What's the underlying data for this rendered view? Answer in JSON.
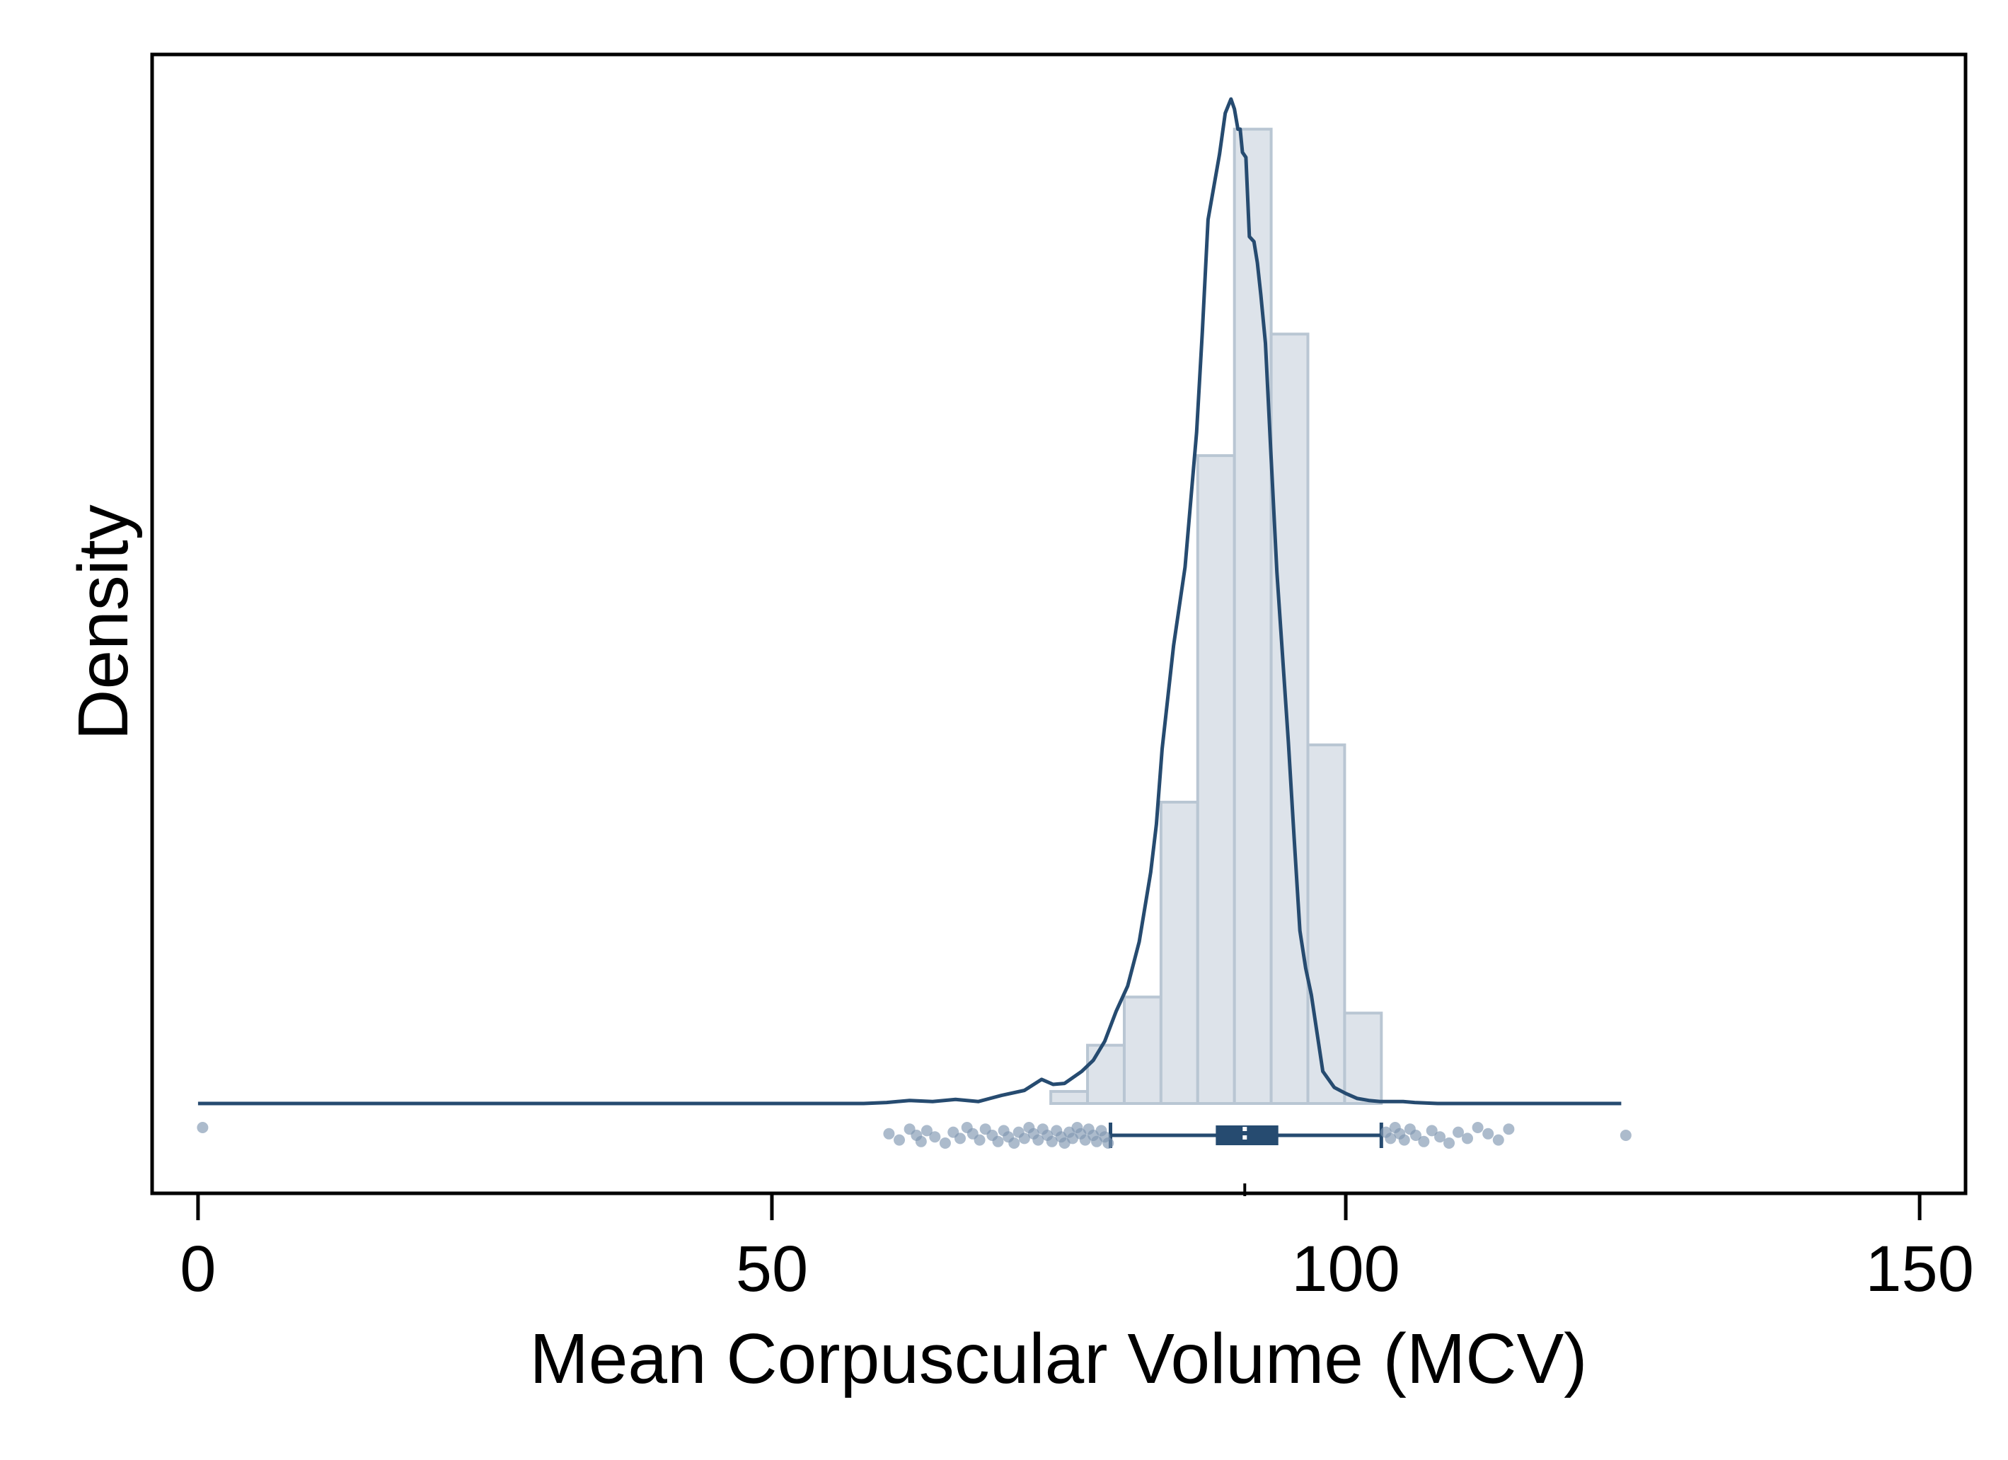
{
  "chart_data": {
    "type": "histogram",
    "xlabel": "Mean Corpuscular Volume (MCV)",
    "ylabel": "Density",
    "xlim": [
      -4,
      154
    ],
    "x_ticks": [
      0,
      50,
      100,
      150
    ],
    "x_tick_labels": [
      "0",
      "50",
      "100",
      "150"
    ],
    "y_ticks_shown": false,
    "grid": false,
    "histogram": {
      "bin_edges": [
        74.3,
        77.5,
        80.7,
        83.9,
        87.1,
        90.3,
        93.5,
        96.7,
        99.9,
        103.1
      ],
      "relative_heights": [
        0.012,
        0.058,
        0.106,
        0.3,
        0.645,
        0.97,
        0.766,
        0.357,
        0.09
      ]
    },
    "density_curve": {
      "x": [
        0,
        30,
        58,
        60,
        62,
        64,
        66,
        68,
        70,
        72,
        73.5,
        74.5,
        75.5,
        77,
        78,
        79,
        80,
        81,
        82,
        83,
        83.5,
        84,
        85,
        86,
        87,
        87.5,
        88,
        89,
        89.5,
        90,
        90.3,
        90.6,
        90.8,
        91,
        91.3,
        91.6,
        92,
        92.3,
        92.6,
        93,
        93.5,
        94,
        95,
        95.5,
        96,
        96.5,
        97,
        97.5,
        98,
        99,
        100,
        101,
        102,
        103,
        104,
        105,
        106,
        108,
        110,
        112,
        114,
        116,
        118,
        120,
        122,
        124
      ],
      "y": [
        0,
        0,
        0,
        0.001,
        0.003,
        0.002,
        0.004,
        0.002,
        0.008,
        0.013,
        0.024,
        0.019,
        0.02,
        0.032,
        0.043,
        0.062,
        0.092,
        0.117,
        0.161,
        0.23,
        0.278,
        0.353,
        0.456,
        0.534,
        0.668,
        0.768,
        0.88,
        0.945,
        0.986,
        1.0,
        0.99,
        0.97,
        0.97,
        0.947,
        0.942,
        0.863,
        0.858,
        0.837,
        0.805,
        0.757,
        0.642,
        0.529,
        0.36,
        0.265,
        0.172,
        0.135,
        0.108,
        0.07,
        0.032,
        0.016,
        0.01,
        0.005,
        0.003,
        0.002,
        0.002,
        0.002,
        0.001,
        0,
        0,
        0,
        0,
        0,
        0,
        0,
        0,
        0
      ]
    },
    "boxplot": {
      "whisker_low": 79.5,
      "q1": 88.8,
      "median": 91.2,
      "q3": 94.0,
      "whisker_high": 103.1,
      "outliers": [
        0.4,
        60.2,
        61.1,
        62.0,
        62.6,
        63.0,
        63.5,
        64.2,
        65.1,
        65.8,
        66.4,
        67.0,
        67.5,
        68.1,
        68.6,
        69.2,
        69.7,
        70.2,
        70.6,
        71.1,
        71.5,
        72.0,
        72.4,
        72.8,
        73.2,
        73.6,
        74.0,
        74.4,
        74.8,
        75.2,
        75.5,
        75.9,
        76.2,
        76.6,
        76.9,
        77.3,
        77.6,
        78.0,
        78.3,
        78.7,
        79.0,
        79.3,
        103.5,
        103.9,
        104.3,
        104.7,
        105.1,
        105.6,
        106.1,
        106.8,
        107.5,
        108.2,
        109.0,
        109.8,
        110.6,
        111.5,
        112.4,
        113.3,
        114.2,
        124.4
      ]
    },
    "colors": {
      "curve": "#264b70",
      "hist_fill": "#dde3ea",
      "hist_edge": "#b9c6d3",
      "box": "#264b70",
      "points": "#7f97b0"
    }
  }
}
